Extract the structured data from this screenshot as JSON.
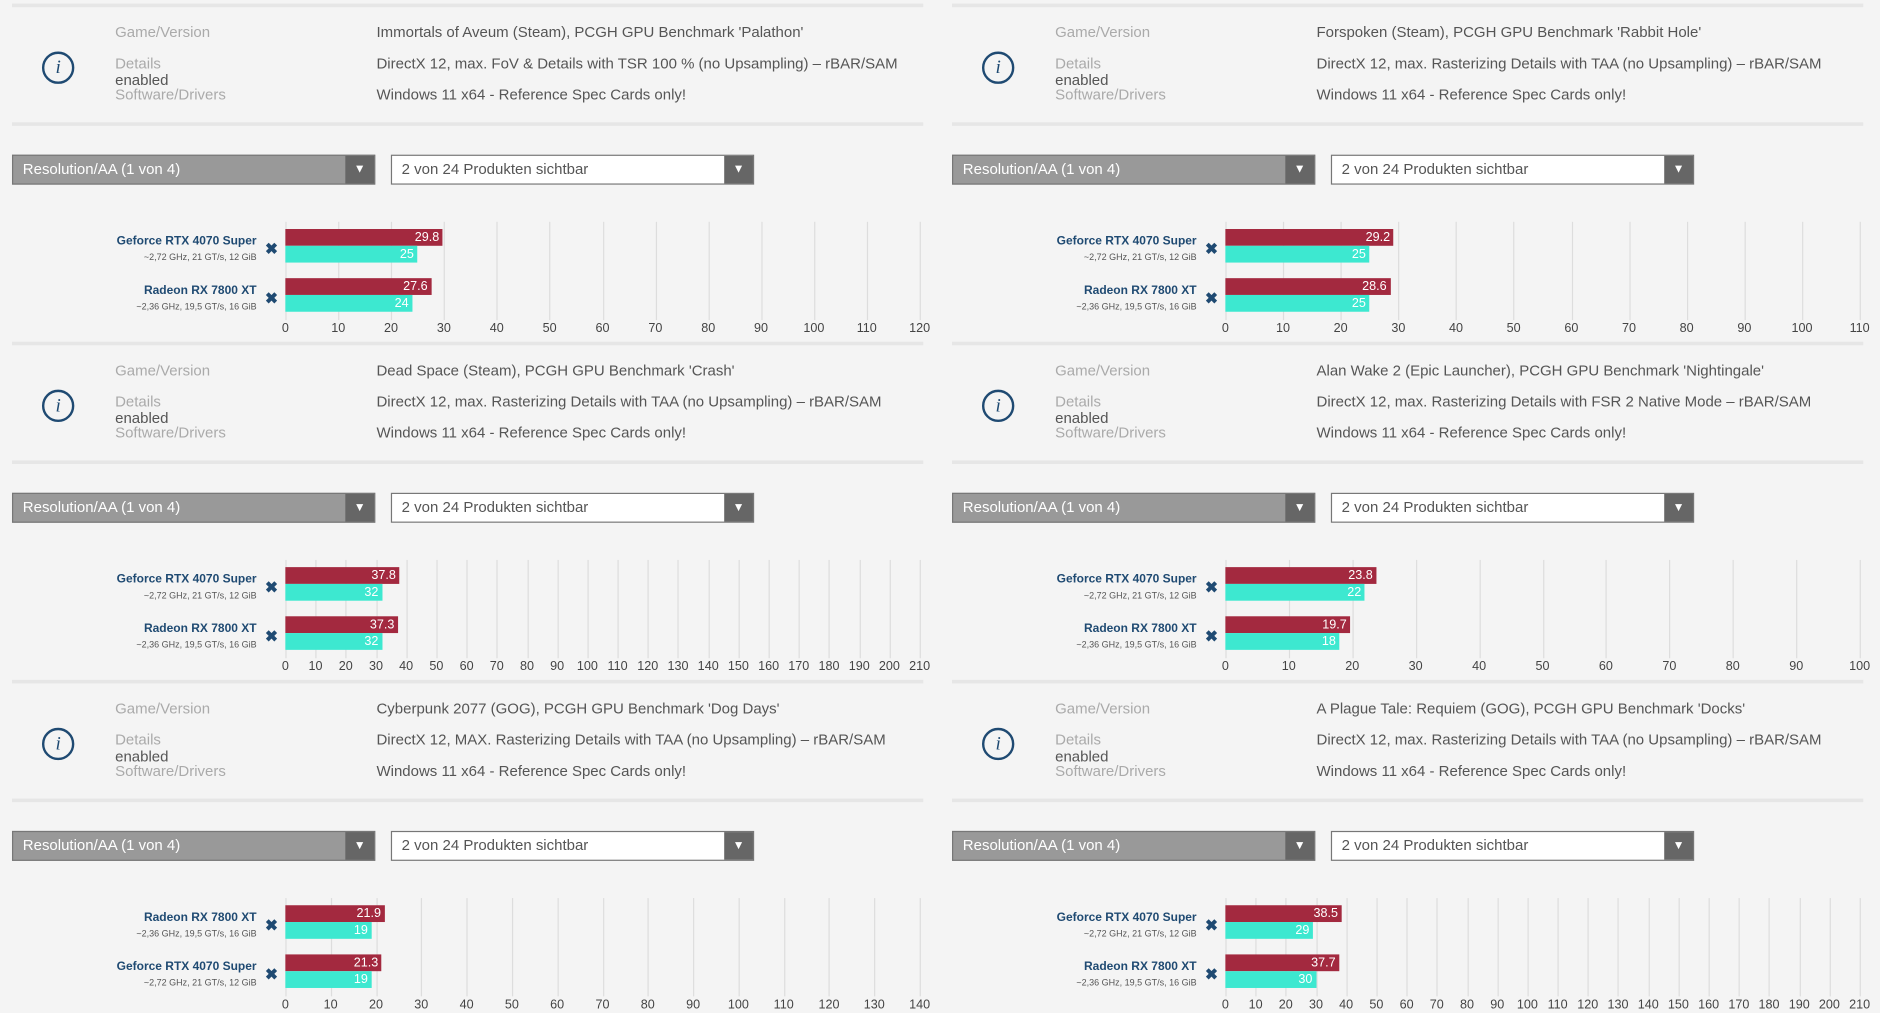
{
  "labels": {
    "game": "Game/Version",
    "details": "Details",
    "software": "Software/Drivers",
    "info_icon": "i",
    "dropdown_arrow": "▼",
    "remove_icon": "✖"
  },
  "colors": {
    "avg": "#a3293f",
    "low": "#3de8d0",
    "accent": "#1f4a72"
  },
  "chart_data": [
    {
      "type": "bar",
      "orientation": "horizontal",
      "game": "Immortals of Aveum (Steam), PCGH GPU Benchmark 'Palathon'",
      "details": "DirectX 12, max. FoV & Details with TSR 100 % (no Upsampling) – rBAR/SAM enabled",
      "software": "Windows 11 x64 - Reference Spec Cards only!",
      "resolution_select": "Resolution/AA (1 von 4)",
      "products_select": "2 von 24 Produkten sichtbar",
      "xlim": [
        0,
        120
      ],
      "xstep": 10,
      "products": [
        {
          "name": "Geforce RTX 4070 Super",
          "spec": "~2,72 GHz, 21 GT/s, 12 GiB",
          "values": [
            29.8,
            25
          ]
        },
        {
          "name": "Radeon RX 7800 XT",
          "spec": "~2,36 GHz, 19,5 GT/s, 16 GiB",
          "values": [
            27.6,
            24
          ]
        }
      ]
    },
    {
      "type": "bar",
      "orientation": "horizontal",
      "game": "Dead Space (Steam), PCGH GPU Benchmark 'Crash'",
      "details": "DirectX 12, max. Rasterizing Details with TAA (no Upsampling) – rBAR/SAM enabled",
      "software": "Windows 11 x64 - Reference Spec Cards only!",
      "resolution_select": "Resolution/AA (1 von 4)",
      "products_select": "2 von 24 Produkten sichtbar",
      "xlim": [
        0,
        210
      ],
      "xstep": 10,
      "products": [
        {
          "name": "Geforce RTX 4070 Super",
          "spec": "~2,72 GHz, 21 GT/s, 12 GiB",
          "values": [
            37.8,
            32
          ]
        },
        {
          "name": "Radeon RX 7800 XT",
          "spec": "~2,36 GHz, 19,5 GT/s, 16 GiB",
          "values": [
            37.3,
            32
          ]
        }
      ]
    },
    {
      "type": "bar",
      "orientation": "horizontal",
      "game": "Cyberpunk 2077 (GOG), PCGH GPU Benchmark 'Dog Days'",
      "details": "DirectX 12, MAX. Rasterizing Details with TAA (no Upsampling) – rBAR/SAM enabled",
      "software": "Windows 11 x64 - Reference Spec Cards only!",
      "resolution_select": "Resolution/AA (1 von 4)",
      "products_select": "2 von 24 Produkten sichtbar",
      "xlim": [
        0,
        140
      ],
      "xstep": 10,
      "products": [
        {
          "name": "Radeon RX 7800 XT",
          "spec": "~2,36 GHz, 19,5 GT/s, 16 GiB",
          "values": [
            21.9,
            19
          ]
        },
        {
          "name": "Geforce RTX 4070 Super",
          "spec": "~2,72 GHz, 21 GT/s, 12 GiB",
          "values": [
            21.3,
            19
          ]
        }
      ]
    },
    {
      "type": "bar",
      "orientation": "horizontal",
      "game": "Forspoken (Steam), PCGH GPU Benchmark 'Rabbit Hole'",
      "details": "DirectX 12, max. Rasterizing Details with TAA (no Upsampling) – rBAR/SAM enabled",
      "software": "Windows 11 x64 - Reference Spec Cards only!",
      "resolution_select": "Resolution/AA (1 von 4)",
      "products_select": "2 von 24 Produkten sichtbar",
      "xlim": [
        0,
        110
      ],
      "xstep": 10,
      "products": [
        {
          "name": "Geforce RTX 4070 Super",
          "spec": "~2,72 GHz, 21 GT/s, 12 GiB",
          "values": [
            29.2,
            25
          ]
        },
        {
          "name": "Radeon RX 7800 XT",
          "spec": "~2,36 GHz, 19,5 GT/s, 16 GiB",
          "values": [
            28.6,
            25
          ]
        }
      ]
    },
    {
      "type": "bar",
      "orientation": "horizontal",
      "game": "Alan Wake 2 (Epic Launcher), PCGH GPU Benchmark 'Nightingale'",
      "details": "DirectX 12, max. Rasterizing Details with FSR 2 Native Mode – rBAR/SAM enabled",
      "software": "Windows 11 x64 - Reference Spec Cards only!",
      "resolution_select": "Resolution/AA (1 von 4)",
      "products_select": "2 von 24 Produkten sichtbar",
      "xlim": [
        0,
        100
      ],
      "xstep": 10,
      "products": [
        {
          "name": "Geforce RTX 4070 Super",
          "spec": "~2,72 GHz, 21 GT/s, 12 GiB",
          "values": [
            23.8,
            22
          ]
        },
        {
          "name": "Radeon RX 7800 XT",
          "spec": "~2,36 GHz, 19,5 GT/s, 16 GiB",
          "values": [
            19.7,
            18
          ]
        }
      ]
    },
    {
      "type": "bar",
      "orientation": "horizontal",
      "game": "A Plague Tale: Requiem (GOG), PCGH GPU Benchmark 'Docks'",
      "details": "DirectX 12, max. Rasterizing Details with TAA (no Upsampling) – rBAR/SAM enabled",
      "software": "Windows 11 x64 - Reference Spec Cards only!",
      "resolution_select": "Resolution/AA (1 von 4)",
      "products_select": "2 von 24 Produkten sichtbar",
      "xlim": [
        0,
        210
      ],
      "xstep": 10,
      "products": [
        {
          "name": "Geforce RTX 4070 Super",
          "spec": "~2,72 GHz, 21 GT/s, 12 GiB",
          "values": [
            38.5,
            29
          ]
        },
        {
          "name": "Radeon RX 7800 XT",
          "spec": "~2,36 GHz, 19,5 GT/s, 16 GiB",
          "values": [
            37.7,
            30
          ]
        }
      ]
    }
  ]
}
